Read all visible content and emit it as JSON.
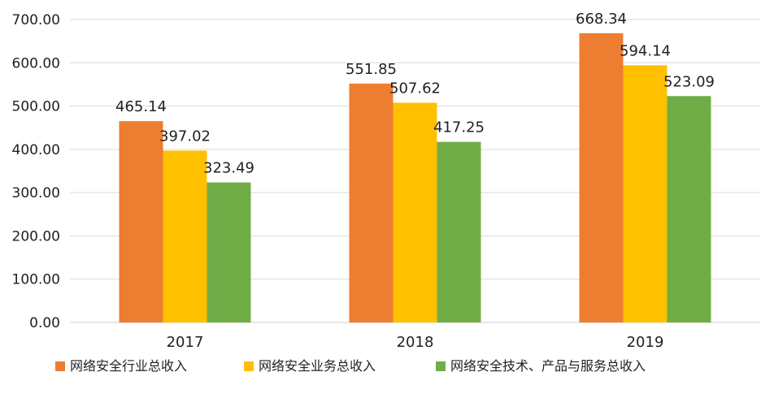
{
  "chart_data": {
    "type": "bar",
    "categories": [
      "2017",
      "2018",
      "2019"
    ],
    "series": [
      {
        "name": "网络安全行业总收入",
        "color": "#ED7D31",
        "values": [
          465.14,
          551.85,
          668.34
        ],
        "labels": [
          "465.14",
          "551.85",
          "668.34"
        ]
      },
      {
        "name": "网络安全业务总收入",
        "color": "#FFC000",
        "values": [
          397.02,
          507.62,
          594.14
        ],
        "labels": [
          "397.02",
          "507.62",
          "594.14"
        ]
      },
      {
        "name": "网络安全技术、产品与服务总收入",
        "color": "#70AD47",
        "values": [
          323.49,
          417.25,
          523.09
        ],
        "labels": [
          "323.49",
          "417.25",
          "523.09"
        ]
      }
    ],
    "ylim": [
      0,
      700
    ],
    "yticks": [
      "0.00",
      "100.00",
      "200.00",
      "300.00",
      "400.00",
      "500.00",
      "600.00",
      "700.00"
    ],
    "ytick_values": [
      0,
      100,
      200,
      300,
      400,
      500,
      600,
      700
    ],
    "grid": true,
    "legend_position": "bottom",
    "title": "",
    "xlabel": "",
    "ylabel": ""
  }
}
